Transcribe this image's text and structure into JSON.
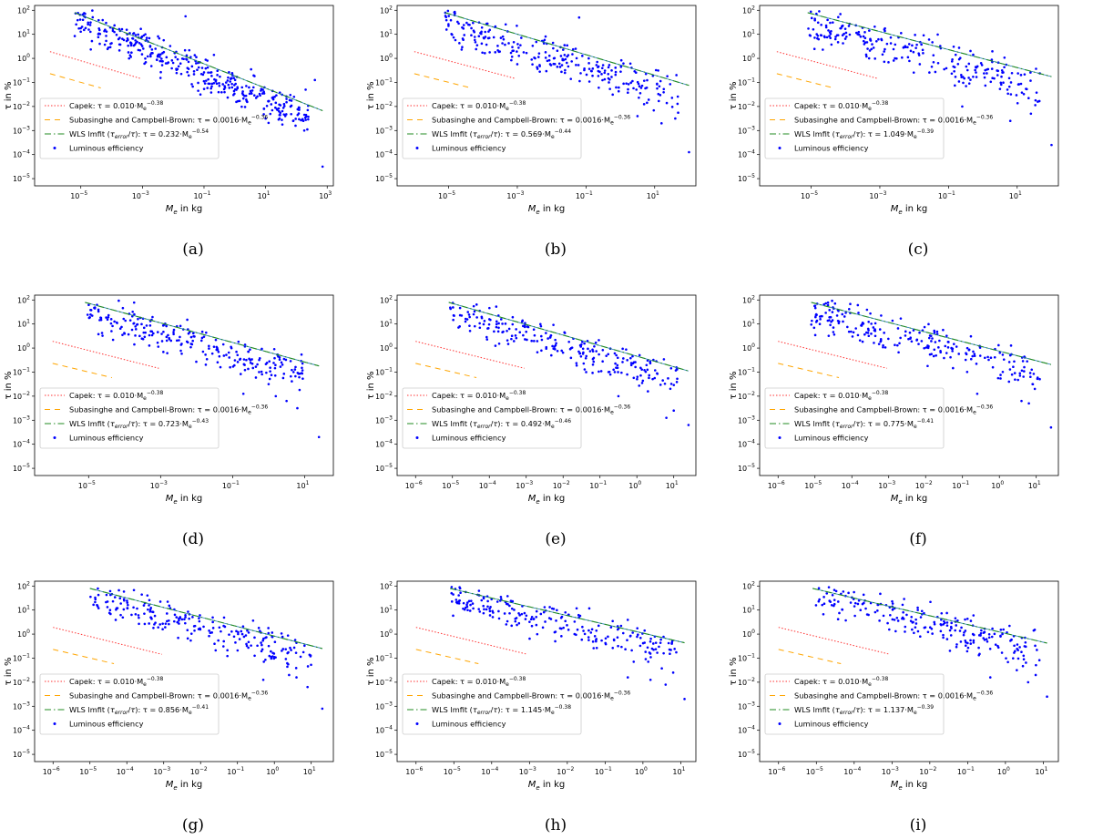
{
  "figure": {
    "xlabel_main": "M",
    "xlabel_sub": "e",
    "xlabel_rest": " in kg",
    "ylabel": "τ in %",
    "legend": [
      {
        "name": "Capek",
        "formula_pre": ": τ = 0.010·M",
        "sub": "e",
        "sup": "−0.38",
        "color": "#ff3333",
        "dash": "1.5,2"
      },
      {
        "name": "Subasinghe and Campbell-Brown",
        "formula_pre": ": τ = 0.0016·M",
        "sub": "e",
        "sup": "−0.36",
        "color": "#ffa500",
        "dash": "6,5"
      },
      {
        "name": "WLS lmfit (τerror/τ)",
        "formula_pre": ": τ = ",
        "sub": "e",
        "color": "#228b22",
        "dash": "7,3,1.5,3"
      },
      {
        "name": "Luminous efficiency",
        "color": "#0000ff"
      }
    ],
    "yticks": [
      2,
      1,
      0,
      -1,
      -2,
      -3,
      -4,
      -5
    ],
    "colors": {
      "capek": "#ff3333",
      "subasinghe": "#ffa500",
      "wls_line": "#228b22",
      "wls_line2": "#1f77b4",
      "points": "#0000ff"
    }
  },
  "chart_data": [
    {
      "type": "scatter",
      "caption": "(a)",
      "title": "",
      "xlabel": "Me in kg",
      "ylabel": "τ in %",
      "x_log_range": [
        -6.5,
        3.2
      ],
      "y_log_range": [
        -5.3,
        2.2
      ],
      "xticks": [
        -5,
        -3,
        -1,
        1,
        3
      ],
      "fit": {
        "coef": "0.232",
        "exp": "−0.54",
        "coef_value": 0.232,
        "exponent": -0.54,
        "xfrom": -5.2,
        "xto": 2.85
      },
      "capek": {
        "xfrom": -6,
        "xto": -3.05
      },
      "subasinghe": {
        "xfrom": -6,
        "xto": -4.35
      },
      "scatter": {
        "xmin": -5.2,
        "xmax": 2.4,
        "n": 380,
        "spread": 0.45,
        "offset": -0.55,
        "seed": 11
      },
      "outliers": [
        [
          2.85,
          -4.5
        ],
        [
          2.6,
          -0.9
        ],
        [
          2.3,
          -1.3
        ],
        [
          -1.6,
          1.75
        ],
        [
          1.0,
          -2.5
        ]
      ]
    },
    {
      "type": "scatter",
      "caption": "(b)",
      "title": "",
      "xlabel": "Me in kg",
      "ylabel": "τ in %",
      "x_log_range": [
        -6.5,
        2.2
      ],
      "y_log_range": [
        -5.3,
        2.2
      ],
      "xticks": [
        -5,
        -3,
        -1,
        1
      ],
      "fit": {
        "coef": "0.569",
        "exp": "−0.44",
        "coef_value": 0.569,
        "exponent": -0.44,
        "xfrom": -5.1,
        "xto": 2.0
      },
      "capek": {
        "xfrom": -6,
        "xto": -3.05
      },
      "subasinghe": {
        "xfrom": -6,
        "xto": -4.35
      },
      "scatter": {
        "xmin": -5.1,
        "xmax": 1.7,
        "n": 260,
        "spread": 0.5,
        "offset": -0.6,
        "seed": 23
      },
      "outliers": [
        [
          2.0,
          -3.9
        ],
        [
          -1.2,
          1.7
        ],
        [
          1.6,
          -2.5
        ],
        [
          1.2,
          -2.7
        ],
        [
          0.5,
          -2.4
        ]
      ]
    },
    {
      "type": "scatter",
      "caption": "(c)",
      "title": "",
      "xlabel": "Me in kg",
      "ylabel": "τ in %",
      "x_log_range": [
        -6.5,
        2.2
      ],
      "y_log_range": [
        -5.3,
        2.2
      ],
      "xticks": [
        -5,
        -3,
        -1,
        1
      ],
      "fit": {
        "coef": "1.049",
        "exp": "−0.39",
        "coef_value": 1.049,
        "exponent": -0.39,
        "xfrom": -5.1,
        "xto": 2.0
      },
      "capek": {
        "xfrom": -6,
        "xto": -3.05
      },
      "subasinghe": {
        "xfrom": -6,
        "xto": -4.35
      },
      "scatter": {
        "xmin": -5.1,
        "xmax": 1.7,
        "n": 240,
        "spread": 0.5,
        "offset": -0.65,
        "seed": 37
      },
      "outliers": [
        [
          2.0,
          -3.6
        ],
        [
          1.6,
          -1.8
        ],
        [
          1.4,
          -2.3
        ],
        [
          -0.6,
          -2.0
        ],
        [
          0.8,
          -2.6
        ]
      ]
    },
    {
      "type": "scatter",
      "caption": "(d)",
      "title": "",
      "xlabel": "Me in kg",
      "ylabel": "τ in %",
      "x_log_range": [
        -6.5,
        1.8
      ],
      "y_log_range": [
        -5.3,
        2.2
      ],
      "xticks": [
        -5,
        -3,
        -1,
        1
      ],
      "fit": {
        "coef": "0.723",
        "exp": "−0.43",
        "coef_value": 0.723,
        "exponent": -0.43,
        "xfrom": -5.1,
        "xto": 1.4
      },
      "capek": {
        "xfrom": -6,
        "xto": -3.05
      },
      "subasinghe": {
        "xfrom": -6,
        "xto": -4.35
      },
      "scatter": {
        "xmin": -5.1,
        "xmax": 1.0,
        "n": 240,
        "spread": 0.45,
        "offset": -0.55,
        "seed": 41
      },
      "outliers": [
        [
          1.4,
          -3.7
        ],
        [
          0.8,
          -2.5
        ],
        [
          0.5,
          -2.2
        ],
        [
          -0.7,
          -1.9
        ],
        [
          0.2,
          -2.0
        ]
      ]
    },
    {
      "type": "scatter",
      "caption": "(e)",
      "title": "",
      "xlabel": "Me in kg",
      "ylabel": "τ in %",
      "x_log_range": [
        -6.5,
        1.6
      ],
      "y_log_range": [
        -5.3,
        2.2
      ],
      "xticks": [
        -6,
        -5,
        -4,
        -3,
        -2,
        -1,
        0,
        1
      ],
      "fit": {
        "coef": "0.492",
        "exp": "−0.46",
        "coef_value": 0.492,
        "exponent": -0.46,
        "xfrom": -5.1,
        "xto": 1.4
      },
      "capek": {
        "xfrom": -6,
        "xto": -3.05
      },
      "subasinghe": {
        "xfrom": -6,
        "xto": -4.35
      },
      "scatter": {
        "xmin": -5.1,
        "xmax": 1.1,
        "n": 230,
        "spread": 0.45,
        "offset": -0.5,
        "seed": 53
      },
      "outliers": [
        [
          1.4,
          -3.2
        ],
        [
          1.0,
          -2.6
        ],
        [
          0.8,
          -2.9
        ],
        [
          -0.5,
          -2.0
        ],
        [
          0.3,
          -1.8
        ]
      ]
    },
    {
      "type": "scatter",
      "caption": "(f)",
      "title": "",
      "xlabel": "Me in kg",
      "ylabel": "τ in %",
      "x_log_range": [
        -6.5,
        1.6
      ],
      "y_log_range": [
        -5.3,
        2.2
      ],
      "xticks": [
        -6,
        -5,
        -4,
        -3,
        -2,
        -1,
        0,
        1
      ],
      "fit": {
        "coef": "0.775",
        "exp": "−0.41",
        "coef_value": 0.775,
        "exponent": -0.41,
        "xfrom": -5.1,
        "xto": 1.4
      },
      "capek": {
        "xfrom": -6,
        "xto": -3.05
      },
      "subasinghe": {
        "xfrom": -6,
        "xto": -4.35
      },
      "scatter": {
        "xmin": -5.1,
        "xmax": 1.1,
        "n": 230,
        "spread": 0.45,
        "offset": -0.5,
        "seed": 67
      },
      "outliers": [
        [
          1.4,
          -3.3
        ],
        [
          0.8,
          -2.3
        ],
        [
          0.6,
          -2.2
        ],
        [
          -0.6,
          -1.9
        ],
        [
          0.9,
          -1.5
        ]
      ]
    },
    {
      "type": "scatter",
      "caption": "(g)",
      "title": "",
      "xlabel": "Me in kg",
      "ylabel": "τ in %",
      "x_log_range": [
        -6.5,
        1.6
      ],
      "y_log_range": [
        -5.3,
        2.2
      ],
      "xticks": [
        -6,
        -5,
        -4,
        -3,
        -2,
        -1,
        0,
        1
      ],
      "fit": {
        "coef": "0.856",
        "exp": "−0.41",
        "coef_value": 0.856,
        "exponent": -0.41,
        "xfrom": -5.0,
        "xto": 1.3
      },
      "capek": {
        "xfrom": -6,
        "xto": -3.05
      },
      "subasinghe": {
        "xfrom": -6,
        "xto": -4.35
      },
      "scatter": {
        "xmin": -5.0,
        "xmax": 1.0,
        "n": 220,
        "spread": 0.45,
        "offset": -0.45,
        "seed": 79
      },
      "outliers": [
        [
          1.3,
          -3.1
        ],
        [
          0.9,
          -2.2
        ],
        [
          0.6,
          -1.8
        ],
        [
          -0.3,
          -1.9
        ],
        [
          0.4,
          -1.7
        ]
      ]
    },
    {
      "type": "scatter",
      "caption": "(h)",
      "title": "",
      "xlabel": "Me in kg",
      "ylabel": "τ in %",
      "x_log_range": [
        -6.5,
        1.4
      ],
      "y_log_range": [
        -5.3,
        2.2
      ],
      "xticks": [
        -6,
        -5,
        -4,
        -3,
        -2,
        -1,
        0,
        1
      ],
      "fit": {
        "coef": "1.145",
        "exp": "−0.38",
        "coef_value": 1.145,
        "exponent": -0.38,
        "xfrom": -5.1,
        "xto": 1.1
      },
      "capek": {
        "xfrom": -6,
        "xto": -3.05
      },
      "subasinghe": {
        "xfrom": -6,
        "xto": -4.35
      },
      "scatter": {
        "xmin": -5.1,
        "xmax": 0.9,
        "n": 220,
        "spread": 0.45,
        "offset": -0.45,
        "seed": 91
      },
      "outliers": [
        [
          1.1,
          -2.7
        ],
        [
          0.8,
          -1.6
        ],
        [
          0.6,
          -2.1
        ],
        [
          -0.4,
          -1.8
        ],
        [
          0.2,
          -1.9
        ]
      ]
    },
    {
      "type": "scatter",
      "caption": "(i)",
      "title": "",
      "xlabel": "Me in kg",
      "ylabel": "τ in %",
      "x_log_range": [
        -6.5,
        1.4
      ],
      "y_log_range": [
        -5.3,
        2.2
      ],
      "xticks": [
        -6,
        -5,
        -4,
        -3,
        -2,
        -1,
        0,
        1
      ],
      "fit": {
        "coef": "1.137",
        "exp": "−0.39",
        "coef_value": 1.137,
        "exponent": -0.39,
        "xfrom": -5.1,
        "xto": 1.1
      },
      "capek": {
        "xfrom": -6,
        "xto": -3.05
      },
      "subasinghe": {
        "xfrom": -6,
        "xto": -4.35
      },
      "scatter": {
        "xmin": -5.1,
        "xmax": 0.9,
        "n": 220,
        "spread": 0.45,
        "offset": -0.45,
        "seed": 103
      },
      "outliers": [
        [
          1.1,
          -2.6
        ],
        [
          0.8,
          -1.7
        ],
        [
          0.6,
          -2.0
        ],
        [
          -0.4,
          -1.8
        ],
        [
          0.3,
          -1.5
        ]
      ]
    }
  ]
}
